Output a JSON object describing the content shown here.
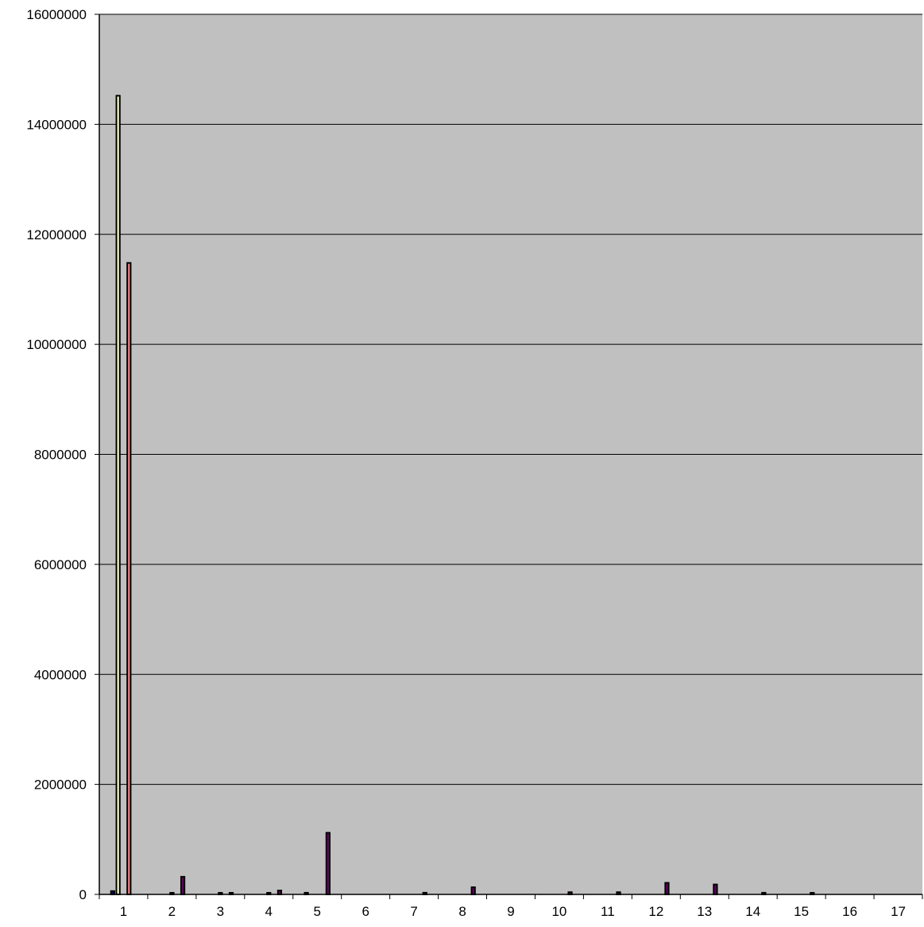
{
  "chart_data": {
    "type": "bar",
    "categories": [
      "1",
      "2",
      "3",
      "4",
      "5",
      "6",
      "7",
      "8",
      "9",
      "10",
      "11",
      "12",
      "13",
      "14",
      "15",
      "16",
      "17"
    ],
    "series": [
      {
        "color": "#000080",
        "values": [
          60000,
          0,
          0,
          0,
          30000,
          0,
          0,
          0,
          0,
          0,
          0,
          0,
          0,
          0,
          0,
          0,
          0
        ]
      },
      {
        "color": "#FFFFCC",
        "values": [
          14520000,
          0,
          0,
          0,
          0,
          0,
          0,
          0,
          0,
          0,
          0,
          0,
          0,
          0,
          0,
          0,
          0
        ]
      },
      {
        "color": "#CCFFFF",
        "values": [
          0,
          10000,
          10000,
          10000,
          0,
          0,
          0,
          0,
          0,
          0,
          0,
          0,
          0,
          0,
          0,
          0,
          0
        ]
      },
      {
        "color": "#FF8080",
        "values": [
          11480000,
          0,
          0,
          0,
          0,
          0,
          0,
          0,
          0,
          0,
          0,
          0,
          0,
          0,
          0,
          0,
          0
        ]
      },
      {
        "color": "#660066",
        "values": [
          0,
          320000,
          20000,
          70000,
          1120000,
          0,
          30000,
          130000,
          0,
          40000,
          40000,
          210000,
          180000,
          30000,
          10000,
          0,
          0
        ]
      }
    ],
    "ylim": [
      0,
      16000000
    ],
    "yticks": [
      0,
      2000000,
      4000000,
      6000000,
      8000000,
      10000000,
      12000000,
      14000000,
      16000000
    ],
    "ytick_labels": [
      "0",
      "2000000",
      "4000000",
      "6000000",
      "8000000",
      "10000000",
      "12000000",
      "14000000",
      "16000000"
    ],
    "grid": true,
    "plot_background": "#C0C0C0",
    "legend": "none"
  }
}
